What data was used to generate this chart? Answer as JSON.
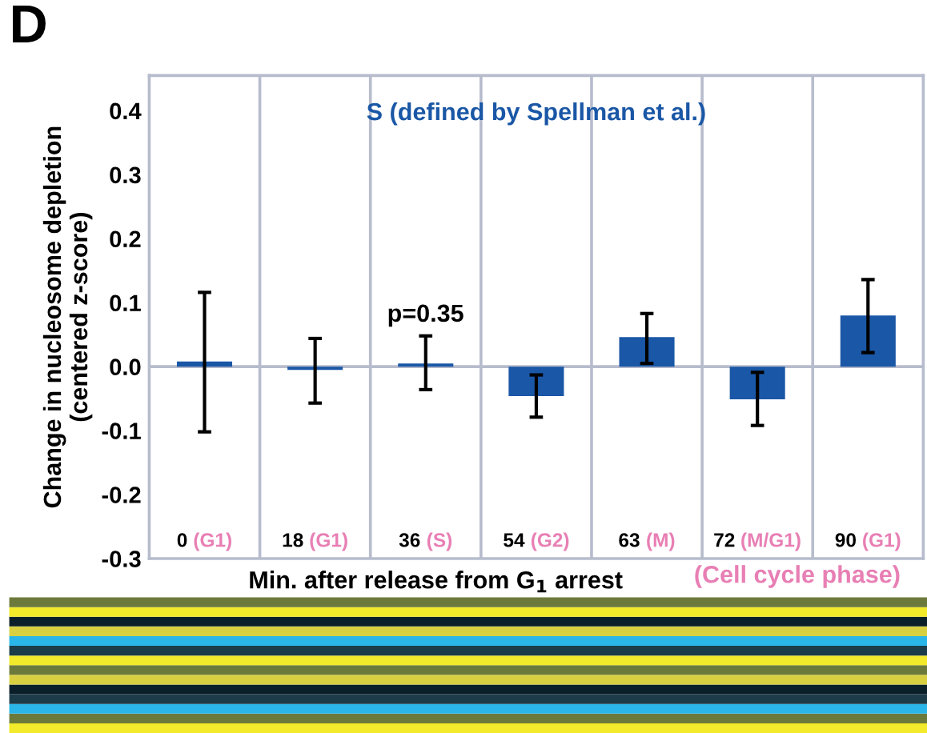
{
  "chart_data": {
    "type": "bar",
    "title": "S (defined by Spellman et al.)",
    "xlabel": "Min. after release from G$_{1}$ arrest",
    "ylabel": "Change in nucleosome depletion\n(centered z-score)",
    "categories": [
      "0 (G1)",
      "18 (G1)",
      "36 (S)",
      "54 (G2)",
      "63 (M)",
      "72 (M/G1)",
      "90 (G1)"
    ],
    "series": [
      {
        "color": "#1a57a6",
        "values": [
          0.008,
          -0.005,
          0.005,
          -0.046,
          0.046,
          -0.051,
          0.08
        ],
        "errors": [
          [
            -0.102,
            0.116
          ],
          [
            -0.057,
            0.044
          ],
          [
            -0.036,
            0.048
          ],
          [
            -0.079,
            -0.013
          ],
          [
            0.005,
            0.083
          ],
          [
            -0.092,
            -0.009
          ],
          [
            0.022,
            0.136
          ]
        ]
      }
    ],
    "ylim": [
      -0.3,
      0.455
    ],
    "yticks": [
      {
        "value": -0.3,
        "label": "-0.3"
      },
      {
        "value": -0.2,
        "label": "-0.2"
      },
      {
        "value": -0.1,
        "label": "-0.1"
      },
      {
        "value": 0,
        "label": "0.0"
      },
      {
        "value": 0.1,
        "label": "0.1"
      },
      {
        "value": 0.2,
        "label": "0.2"
      },
      {
        "value": 0.3,
        "label": "0.3"
      },
      {
        "value": 0.4,
        "label": "0.4"
      }
    ],
    "ref_lines": [
      {
        "axis": "y",
        "value": 0,
        "label": null,
        "color": "#b7bccd"
      }
    ],
    "grid": "x",
    "annotations": [
      "D",
      "(Cell cycle phase)",
      "p=0.35"
    ]
  }
}
